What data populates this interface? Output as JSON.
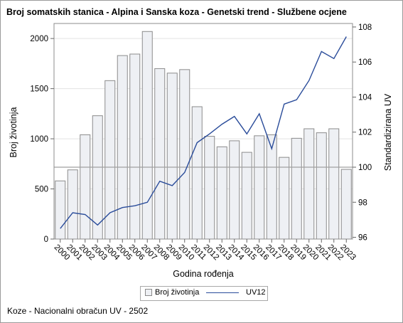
{
  "title": "Broj somatskih stanica - Alpina i Sanska koza - Genetski trend - Službene ocjene",
  "footnote": "Koze - Nacionalni obračun UV - 2502",
  "legend": {
    "bars_label": "Broj životinja",
    "line_label": "UV12",
    "placement": "bottom-center"
  },
  "colors": {
    "bar_fill": "#eef0f4",
    "bar_stroke": "#8b8b8b",
    "line": "#2a4c9a",
    "grid": "#e3e3e3",
    "reference_line": "#a0a0a0"
  },
  "chart_data": {
    "type": "bar+line",
    "xlabel": "Godina rođenja",
    "ylabel_left": "Broj životinja",
    "ylabel_right": "Standardizirana UV",
    "categories": [
      "2000",
      "2001",
      "2002",
      "2003",
      "2004",
      "2005",
      "2006",
      "2007",
      "2008",
      "2009",
      "2010",
      "2011",
      "2012",
      "2013",
      "2014",
      "2015",
      "2016",
      "2017",
      "2018",
      "2019",
      "2020",
      "2021",
      "2022",
      "2023"
    ],
    "series": [
      {
        "name": "Broj životinja",
        "axis": "left",
        "type": "bar",
        "values": [
          580,
          690,
          1040,
          1230,
          1580,
          1830,
          1845,
          2070,
          1700,
          1655,
          1690,
          1320,
          1025,
          920,
          980,
          865,
          1030,
          1040,
          815,
          1005,
          1100,
          1060,
          1100,
          695
        ]
      },
      {
        "name": "UV12",
        "axis": "right",
        "type": "line",
        "values": [
          96.5,
          97.4,
          97.3,
          96.7,
          97.4,
          97.7,
          97.8,
          98.0,
          99.2,
          98.95,
          99.7,
          101.4,
          101.9,
          102.45,
          102.9,
          101.9,
          103.05,
          101.05,
          103.6,
          103.85,
          104.95,
          106.6,
          106.2,
          107.45
        ]
      }
    ],
    "ylim_left": [
      0,
      2150
    ],
    "yticks_left": [
      "0",
      "500",
      "1000",
      "1500",
      "2000"
    ],
    "ylim_right": [
      95.9,
      108.2
    ],
    "yticks_right": [
      "96",
      "98",
      "100",
      "102",
      "104",
      "106",
      "108"
    ],
    "reference_line_right": 100,
    "grid": true
  }
}
